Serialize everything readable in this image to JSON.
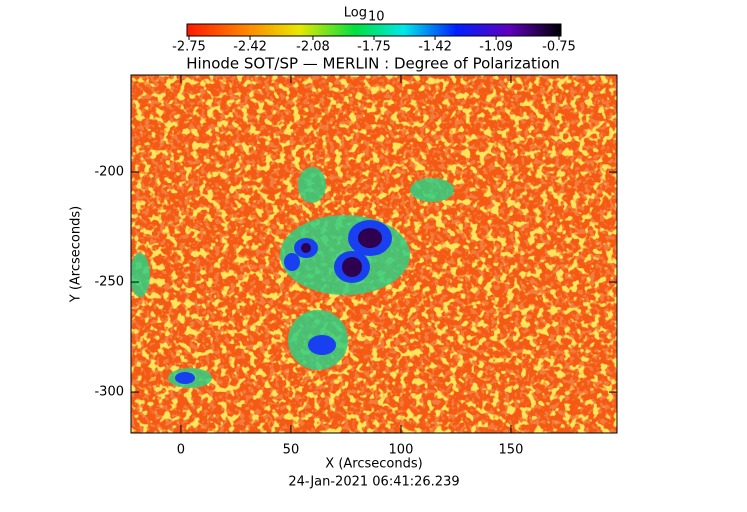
{
  "chart_data": {
    "type": "image",
    "title": "Hinode SOT/SP — MERLIN : Degree of Polarization",
    "x_label": "X (Arcseconds)",
    "y_label": "Y (Arcseconds)",
    "footer": "24-Jan-2021 06:41:26.239",
    "xlim": [
      -22.7,
      198.2
    ],
    "xticks": [
      0,
      50,
      100,
      150
    ],
    "ylim": [
      -318.6,
      -155.9
    ],
    "yticks": [
      -300,
      -250,
      -200
    ],
    "colorbar": {
      "label": "Log",
      "label_sub": "10",
      "lim": [
        -2.75,
        -0.75
      ],
      "ticks": [
        -2.75,
        -2.42,
        -2.08,
        -1.75,
        -1.42,
        -1.09,
        -0.75
      ]
    }
  }
}
